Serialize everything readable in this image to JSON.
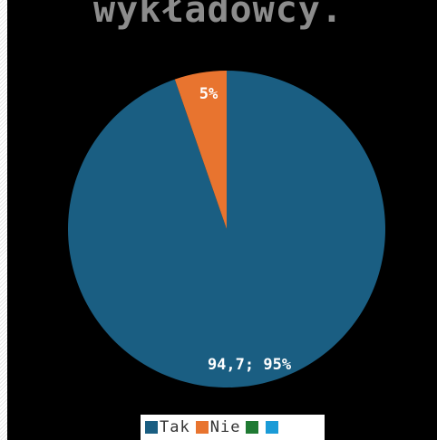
{
  "chart_data": {
    "type": "pie",
    "title": "wykładowcy.",
    "slices": [
      {
        "label": "Tak",
        "value": 94.7,
        "color": "#1a5e82",
        "display": "94,7; 95%"
      },
      {
        "label": "Nie",
        "value": 5.3,
        "color": "#e8742f",
        "display": "5%"
      },
      {
        "label": "",
        "value": 0,
        "color": "#1f7a33",
        "display": ""
      },
      {
        "label": "",
        "value": 0,
        "color": "#1a9bd7",
        "display": ""
      }
    ],
    "legend_position": "bottom"
  }
}
